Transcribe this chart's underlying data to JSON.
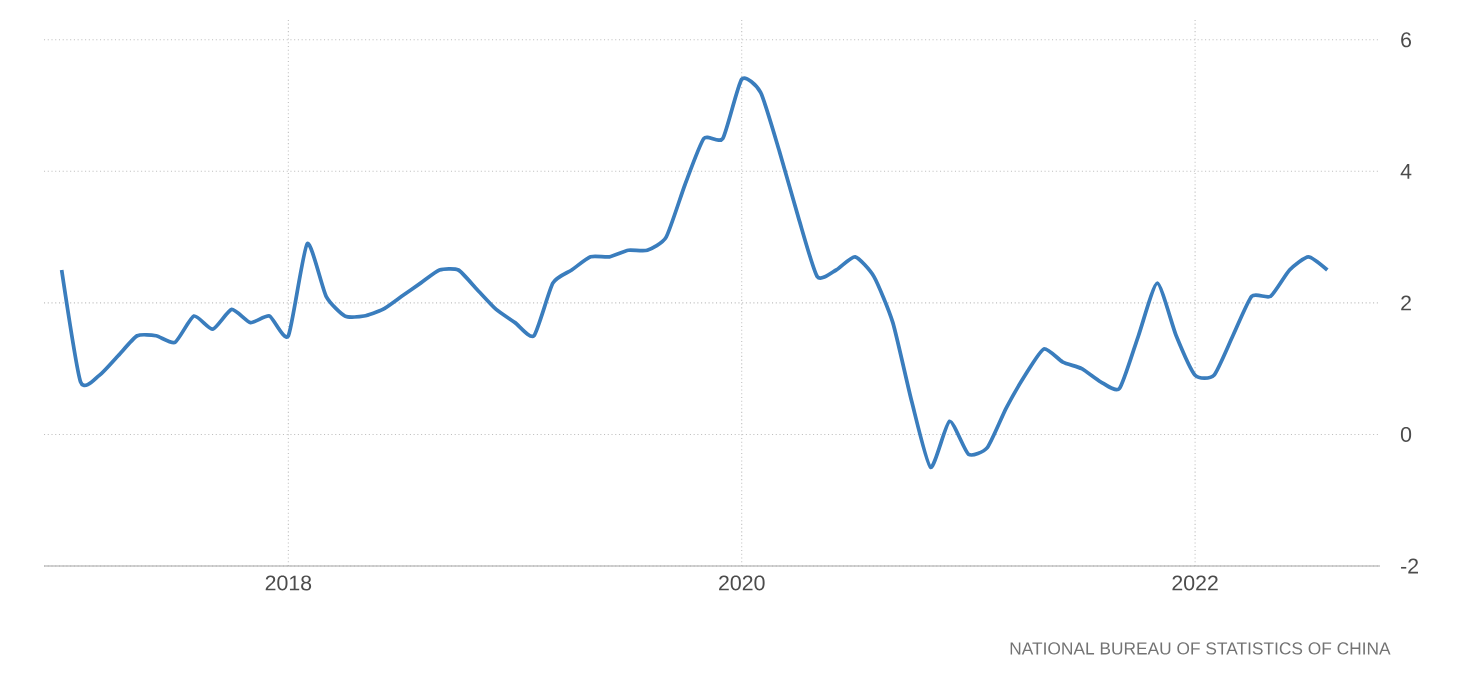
{
  "chart_data": {
    "type": "line",
    "x": [
      "2017-01",
      "2017-02",
      "2017-03",
      "2017-04",
      "2017-05",
      "2017-06",
      "2017-07",
      "2017-08",
      "2017-09",
      "2017-10",
      "2017-11",
      "2017-12",
      "2018-01",
      "2018-02",
      "2018-03",
      "2018-04",
      "2018-05",
      "2018-06",
      "2018-07",
      "2018-08",
      "2018-09",
      "2018-10",
      "2018-11",
      "2018-12",
      "2019-01",
      "2019-02",
      "2019-03",
      "2019-04",
      "2019-05",
      "2019-06",
      "2019-07",
      "2019-08",
      "2019-09",
      "2019-10",
      "2019-11",
      "2019-12",
      "2020-01",
      "2020-02",
      "2020-03",
      "2020-04",
      "2020-05",
      "2020-06",
      "2020-07",
      "2020-08",
      "2020-09",
      "2020-10",
      "2020-11",
      "2020-12",
      "2021-01",
      "2021-02",
      "2021-03",
      "2021-04",
      "2021-05",
      "2021-06",
      "2021-07",
      "2021-08",
      "2021-09",
      "2021-10",
      "2021-11",
      "2021-12",
      "2022-01",
      "2022-02",
      "2022-03",
      "2022-04",
      "2022-05",
      "2022-06",
      "2022-07",
      "2022-08"
    ],
    "series": [
      {
        "color": "#3a7dbd",
        "values": [
          2.5,
          0.8,
          0.9,
          1.2,
          1.5,
          1.5,
          1.4,
          1.8,
          1.6,
          1.9,
          1.7,
          1.8,
          1.5,
          2.9,
          2.1,
          1.8,
          1.8,
          1.9,
          2.1,
          2.3,
          2.5,
          2.5,
          2.2,
          1.9,
          1.7,
          1.5,
          2.3,
          2.5,
          2.7,
          2.7,
          2.8,
          2.8,
          3.0,
          3.8,
          4.5,
          4.5,
          5.4,
          5.2,
          4.3,
          3.3,
          2.4,
          2.5,
          2.7,
          2.4,
          1.7,
          0.5,
          -0.5,
          0.2,
          -0.3,
          -0.2,
          0.4,
          0.9,
          1.3,
          1.1,
          1.0,
          0.8,
          0.7,
          1.5,
          2.3,
          1.5,
          0.9,
          0.9,
          1.5,
          2.1,
          2.1,
          2.5,
          2.7,
          2.5
        ]
      }
    ],
    "xlim": [
      "2016-12-03",
      "2022-10-25"
    ],
    "ylim": [
      -2,
      6.3
    ],
    "xticks": [
      "2018",
      "2020",
      "2022"
    ],
    "yticks": [
      -2,
      0,
      2,
      4,
      6
    ],
    "grid": true,
    "annotations": [
      "NATIONAL BUREAU OF STATISTICS OF CHINA"
    ]
  }
}
